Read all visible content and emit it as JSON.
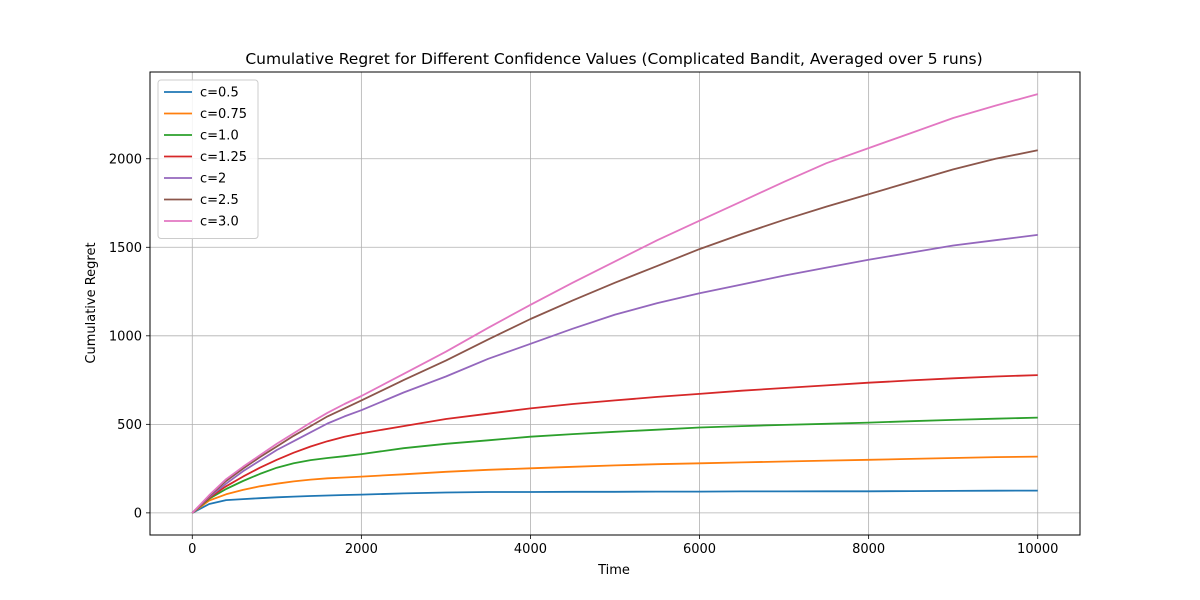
{
  "chart_data": {
    "type": "line",
    "title": "Cumulative Regret for Different Confidence Values (Complicated Bandit, Averaged over 5 runs)",
    "xlabel": "Time",
    "ylabel": "Cumulative Regret",
    "xlim": [
      -500,
      10500
    ],
    "ylim": [
      -125,
      2490
    ],
    "xticks": [
      0,
      2000,
      4000,
      6000,
      8000,
      10000
    ],
    "xtick_labels": [
      "0",
      "2000",
      "4000",
      "6000",
      "8000",
      "10000"
    ],
    "yticks": [
      0,
      500,
      1000,
      1500,
      2000
    ],
    "ytick_labels": [
      "0",
      "500",
      "1000",
      "1500",
      "2000"
    ],
    "grid": true,
    "legend_position": "top-left",
    "x": [
      0,
      200,
      400,
      600,
      800,
      1000,
      1200,
      1400,
      1600,
      1800,
      2000,
      2500,
      3000,
      3500,
      4000,
      4500,
      5000,
      5500,
      6000,
      6500,
      7000,
      7500,
      8000,
      8500,
      9000,
      9500,
      10000
    ],
    "series": [
      {
        "name": "c=0.5",
        "color": "#1f77b4",
        "values": [
          0,
          50,
          72,
          78,
          83,
          88,
          92,
          95,
          98,
          101,
          103,
          110,
          115,
          118,
          118,
          119,
          119,
          120,
          120,
          121,
          121,
          122,
          122,
          123,
          124,
          125,
          126
        ]
      },
      {
        "name": "c=0.75",
        "color": "#ff7f0e",
        "values": [
          0,
          70,
          105,
          130,
          150,
          165,
          178,
          188,
          195,
          200,
          205,
          218,
          232,
          243,
          252,
          260,
          268,
          275,
          280,
          285,
          290,
          295,
          300,
          305,
          310,
          315,
          318
        ]
      },
      {
        "name": "c=1.0",
        "color": "#2ca02c",
        "values": [
          0,
          80,
          135,
          180,
          220,
          255,
          280,
          298,
          310,
          320,
          332,
          365,
          390,
          410,
          430,
          445,
          458,
          470,
          482,
          490,
          497,
          503,
          510,
          518,
          525,
          532,
          538
        ]
      },
      {
        "name": "c=1.25",
        "color": "#d62728",
        "values": [
          0,
          85,
          150,
          205,
          255,
          300,
          340,
          375,
          405,
          430,
          450,
          490,
          530,
          560,
          590,
          615,
          635,
          655,
          672,
          690,
          705,
          720,
          735,
          748,
          760,
          770,
          778
        ]
      },
      {
        "name": "c=2",
        "color": "#9467bd",
        "values": [
          0,
          90,
          165,
          235,
          295,
          355,
          405,
          455,
          505,
          545,
          580,
          680,
          770,
          870,
          955,
          1040,
          1120,
          1185,
          1240,
          1290,
          1340,
          1385,
          1430,
          1470,
          1510,
          1540,
          1570
        ]
      },
      {
        "name": "c=2.5",
        "color": "#8c564b",
        "values": [
          0,
          95,
          180,
          250,
          315,
          375,
          435,
          490,
          545,
          590,
          635,
          750,
          860,
          980,
          1095,
          1200,
          1300,
          1395,
          1490,
          1575,
          1655,
          1730,
          1800,
          1870,
          1940,
          2000,
          2048
        ]
      },
      {
        "name": "c=3.0",
        "color": "#e377c2",
        "values": [
          0,
          100,
          190,
          260,
          325,
          390,
          450,
          510,
          565,
          615,
          660,
          785,
          910,
          1045,
          1175,
          1300,
          1420,
          1540,
          1650,
          1760,
          1870,
          1975,
          2060,
          2145,
          2230,
          2300,
          2365
        ]
      }
    ]
  }
}
